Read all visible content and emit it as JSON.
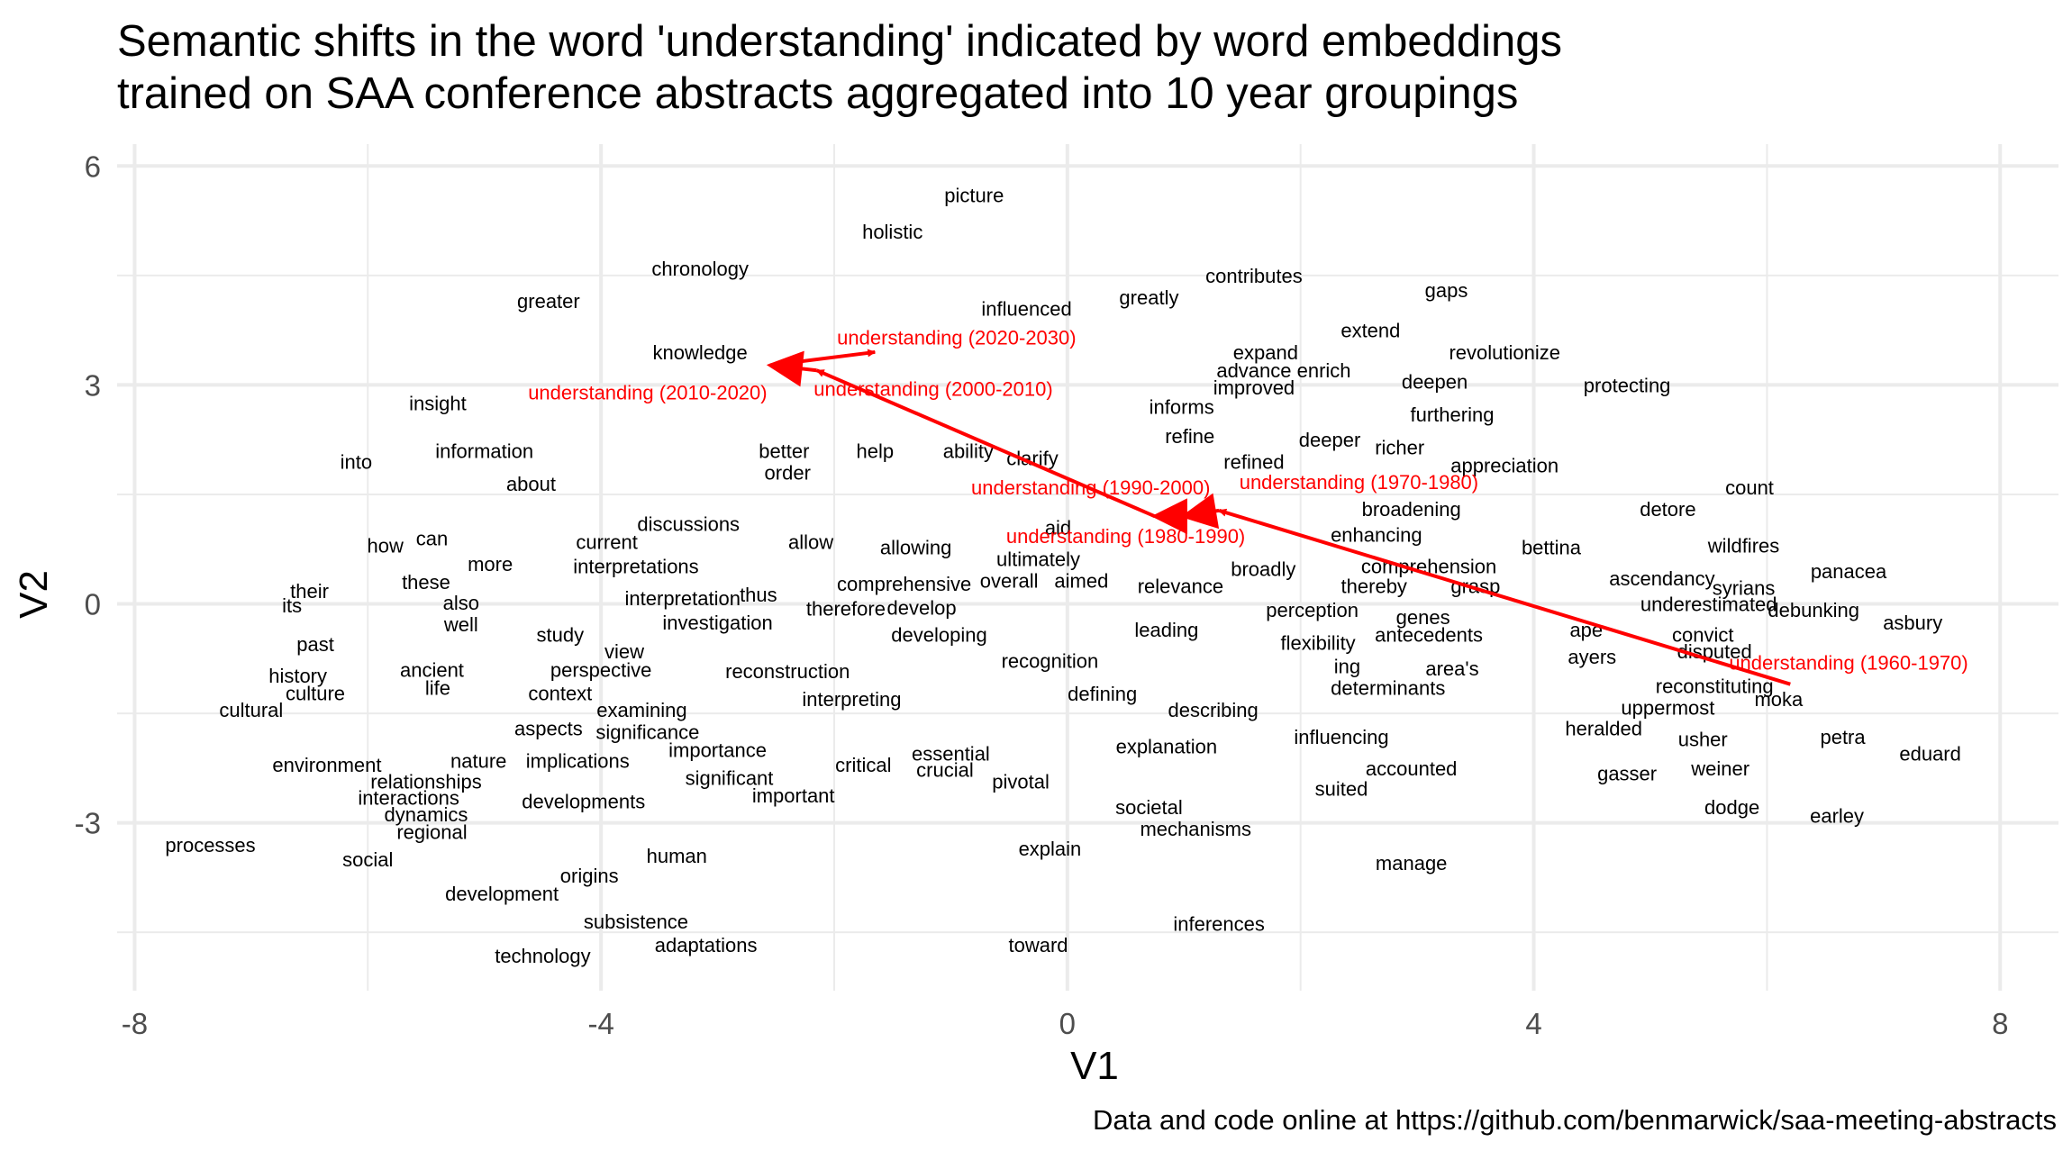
{
  "chart_data": {
    "type": "scatter",
    "title": [
      "Semantic shifts in the word 'understanding' indicated by word embeddings",
      "trained on SAA conference abstracts aggregated into 10 year groupings"
    ],
    "xlabel": "V1",
    "ylabel": "V2",
    "xlim": [
      -8.15,
      8.5
    ],
    "ylim": [
      -5.3,
      6.3
    ],
    "x_ticks": [
      -8,
      -4,
      0,
      4,
      8
    ],
    "x_tick_labels": [
      "-8",
      "-4",
      "0",
      "4",
      "8"
    ],
    "y_ticks": [
      -3,
      0,
      3,
      6
    ],
    "y_tick_labels": [
      "-3",
      "0",
      "3",
      "6"
    ],
    "grid": true,
    "caption": "Data and code online at https://github.com/benmarwick/saa-meeting-abstracts",
    "colors": {
      "words": "#000000",
      "path": "#ff0000",
      "grid": "#ebebeb",
      "background": "#ffffff"
    },
    "words": [
      {
        "text": "picture",
        "x": -0.8,
        "y": 5.6
      },
      {
        "text": "holistic",
        "x": -1.5,
        "y": 5.1
      },
      {
        "text": "chronology",
        "x": -3.15,
        "y": 4.6
      },
      {
        "text": "contributes",
        "x": 1.6,
        "y": 4.5
      },
      {
        "text": "gaps",
        "x": 3.25,
        "y": 4.3
      },
      {
        "text": "greater",
        "x": -4.45,
        "y": 4.15
      },
      {
        "text": "greatly",
        "x": 0.7,
        "y": 4.2
      },
      {
        "text": "influenced",
        "x": -0.35,
        "y": 4.05
      },
      {
        "text": "extend",
        "x": 2.6,
        "y": 3.75
      },
      {
        "text": "knowledge",
        "x": -3.15,
        "y": 3.45
      },
      {
        "text": "expand",
        "x": 1.7,
        "y": 3.45
      },
      {
        "text": "revolutionize",
        "x": 3.75,
        "y": 3.45
      },
      {
        "text": "advance",
        "x": 1.6,
        "y": 3.2
      },
      {
        "text": "enrich",
        "x": 2.2,
        "y": 3.2
      },
      {
        "text": "deepen",
        "x": 3.15,
        "y": 3.05
      },
      {
        "text": "protecting",
        "x": 4.8,
        "y": 3.0
      },
      {
        "text": "improved",
        "x": 1.6,
        "y": 2.97
      },
      {
        "text": "informs",
        "x": 0.98,
        "y": 2.7
      },
      {
        "text": "furthering",
        "x": 3.3,
        "y": 2.6
      },
      {
        "text": "insight",
        "x": -5.4,
        "y": 2.75
      },
      {
        "text": "refine",
        "x": 1.05,
        "y": 2.3
      },
      {
        "text": "deeper",
        "x": 2.25,
        "y": 2.25
      },
      {
        "text": "richer",
        "x": 2.85,
        "y": 2.15
      },
      {
        "text": "information",
        "x": -5.0,
        "y": 2.1
      },
      {
        "text": "better",
        "x": -2.43,
        "y": 2.1
      },
      {
        "text": "help",
        "x": -1.65,
        "y": 2.1
      },
      {
        "text": "ability",
        "x": -0.85,
        "y": 2.1
      },
      {
        "text": "into",
        "x": -6.1,
        "y": 1.95
      },
      {
        "text": "clarify",
        "x": -0.3,
        "y": 2.0
      },
      {
        "text": "refined",
        "x": 1.6,
        "y": 1.95
      },
      {
        "text": "appreciation",
        "x": 3.75,
        "y": 1.9
      },
      {
        "text": "order",
        "x": -2.4,
        "y": 1.8
      },
      {
        "text": "about",
        "x": -4.6,
        "y": 1.65
      },
      {
        "text": "count",
        "x": 5.85,
        "y": 1.6
      },
      {
        "text": "broadening",
        "x": 2.95,
        "y": 1.3
      },
      {
        "text": "detore",
        "x": 5.15,
        "y": 1.3
      },
      {
        "text": "discussions",
        "x": -3.25,
        "y": 1.1
      },
      {
        "text": "aid",
        "x": -0.08,
        "y": 1.05
      },
      {
        "text": "enhancing",
        "x": 2.65,
        "y": 0.95
      },
      {
        "text": "how",
        "x": -5.85,
        "y": 0.8
      },
      {
        "text": "can",
        "x": -5.45,
        "y": 0.9
      },
      {
        "text": "current",
        "x": -3.95,
        "y": 0.85
      },
      {
        "text": "allow",
        "x": -2.2,
        "y": 0.85
      },
      {
        "text": "allowing",
        "x": -1.3,
        "y": 0.78
      },
      {
        "text": "bettina",
        "x": 4.15,
        "y": 0.78
      },
      {
        "text": "wildfires",
        "x": 5.8,
        "y": 0.8
      },
      {
        "text": "ultimately",
        "x": -0.25,
        "y": 0.62
      },
      {
        "text": "more",
        "x": -4.95,
        "y": 0.55
      },
      {
        "text": "interpretations",
        "x": -3.7,
        "y": 0.52
      },
      {
        "text": "comprehension",
        "x": 3.1,
        "y": 0.52
      },
      {
        "text": "broadly",
        "x": 1.68,
        "y": 0.48
      },
      {
        "text": "panacea",
        "x": 6.7,
        "y": 0.45
      },
      {
        "text": "these",
        "x": -5.5,
        "y": 0.3
      },
      {
        "text": "overall",
        "x": -0.5,
        "y": 0.32
      },
      {
        "text": "aimed",
        "x": 0.12,
        "y": 0.32
      },
      {
        "text": "comprehensive",
        "x": -1.4,
        "y": 0.28
      },
      {
        "text": "ascendancy",
        "x": 5.1,
        "y": 0.35
      },
      {
        "text": "their",
        "x": -6.5,
        "y": 0.18
      },
      {
        "text": "relevance",
        "x": 0.97,
        "y": 0.25
      },
      {
        "text": "thereby",
        "x": 2.63,
        "y": 0.25
      },
      {
        "text": "grasp",
        "x": 3.5,
        "y": 0.25
      },
      {
        "text": "syrians",
        "x": 5.8,
        "y": 0.22
      },
      {
        "text": "thus",
        "x": -2.65,
        "y": 0.13
      },
      {
        "text": "interpretation",
        "x": -3.3,
        "y": 0.08
      },
      {
        "text": "also",
        "x": -5.2,
        "y": 0.02
      },
      {
        "text": "underestimated",
        "x": 5.5,
        "y": 0.0
      },
      {
        "text": "its",
        "x": -6.65,
        "y": -0.02
      },
      {
        "text": "develop",
        "x": -1.25,
        "y": -0.05
      },
      {
        "text": "therefore",
        "x": -1.9,
        "y": -0.06
      },
      {
        "text": "perception",
        "x": 2.1,
        "y": -0.08
      },
      {
        "text": "debunking",
        "x": 6.4,
        "y": -0.08
      },
      {
        "text": "investigation",
        "x": -3.0,
        "y": -0.25
      },
      {
        "text": "well",
        "x": -5.2,
        "y": -0.28
      },
      {
        "text": "genes",
        "x": 3.05,
        "y": -0.18
      },
      {
        "text": "asbury",
        "x": 7.25,
        "y": -0.25
      },
      {
        "text": "leading",
        "x": 0.85,
        "y": -0.35
      },
      {
        "text": "ape",
        "x": 4.45,
        "y": -0.35
      },
      {
        "text": "study",
        "x": -4.35,
        "y": -0.42
      },
      {
        "text": "developing",
        "x": -1.1,
        "y": -0.42
      },
      {
        "text": "antecedents",
        "x": 3.1,
        "y": -0.42
      },
      {
        "text": "convict",
        "x": 5.45,
        "y": -0.42
      },
      {
        "text": "flexibility",
        "x": 2.15,
        "y": -0.53
      },
      {
        "text": "past",
        "x": -6.45,
        "y": -0.55
      },
      {
        "text": "view",
        "x": -3.8,
        "y": -0.65
      },
      {
        "text": "disputed",
        "x": 5.55,
        "y": -0.65
      },
      {
        "text": "ayers",
        "x": 4.5,
        "y": -0.72
      },
      {
        "text": "recognition",
        "x": -0.15,
        "y": -0.78
      },
      {
        "text": "ing",
        "x": 2.4,
        "y": -0.85
      },
      {
        "text": "area's",
        "x": 3.3,
        "y": -0.88
      },
      {
        "text": "ancient",
        "x": -5.45,
        "y": -0.9
      },
      {
        "text": "perspective",
        "x": -4.0,
        "y": -0.9
      },
      {
        "text": "reconstruction",
        "x": -2.4,
        "y": -0.92
      },
      {
        "text": "history",
        "x": -6.6,
        "y": -0.98
      },
      {
        "text": "reconstituting",
        "x": 5.55,
        "y": -1.12
      },
      {
        "text": "life",
        "x": -5.4,
        "y": -1.15
      },
      {
        "text": "determinants",
        "x": 2.75,
        "y": -1.15
      },
      {
        "text": "culture",
        "x": -6.45,
        "y": -1.22
      },
      {
        "text": "context",
        "x": -4.35,
        "y": -1.22
      },
      {
        "text": "defining",
        "x": 0.3,
        "y": -1.23
      },
      {
        "text": "interpreting",
        "x": -1.85,
        "y": -1.3
      },
      {
        "text": "moka",
        "x": 6.1,
        "y": -1.3
      },
      {
        "text": "uppermost",
        "x": 5.15,
        "y": -1.42
      },
      {
        "text": "cultural",
        "x": -7.0,
        "y": -1.45
      },
      {
        "text": "examining",
        "x": -3.65,
        "y": -1.45
      },
      {
        "text": "describing",
        "x": 1.25,
        "y": -1.45
      },
      {
        "text": "aspects",
        "x": -4.45,
        "y": -1.7
      },
      {
        "text": "heralded",
        "x": 4.6,
        "y": -1.7
      },
      {
        "text": "significance",
        "x": -3.6,
        "y": -1.75
      },
      {
        "text": "influencing",
        "x": 2.35,
        "y": -1.82
      },
      {
        "text": "petra",
        "x": 6.65,
        "y": -1.82
      },
      {
        "text": "usher",
        "x": 5.45,
        "y": -1.85
      },
      {
        "text": "explanation",
        "x": 0.85,
        "y": -1.95
      },
      {
        "text": "importance",
        "x": -3.0,
        "y": -2.0
      },
      {
        "text": "essential",
        "x": -1.0,
        "y": -2.05
      },
      {
        "text": "eduard",
        "x": 7.4,
        "y": -2.05
      },
      {
        "text": "nature",
        "x": -5.05,
        "y": -2.15
      },
      {
        "text": "implications",
        "x": -4.2,
        "y": -2.15
      },
      {
        "text": "environment",
        "x": -6.35,
        "y": -2.2
      },
      {
        "text": "critical",
        "x": -1.75,
        "y": -2.2
      },
      {
        "text": "crucial",
        "x": -1.05,
        "y": -2.27
      },
      {
        "text": "accounted",
        "x": 2.95,
        "y": -2.25
      },
      {
        "text": "weiner",
        "x": 5.6,
        "y": -2.25
      },
      {
        "text": "gasser",
        "x": 4.8,
        "y": -2.32
      },
      {
        "text": "significant",
        "x": -2.9,
        "y": -2.38
      },
      {
        "text": "relationships",
        "x": -5.5,
        "y": -2.43
      },
      {
        "text": "pivotal",
        "x": -0.4,
        "y": -2.43
      },
      {
        "text": "suited",
        "x": 2.35,
        "y": -2.53
      },
      {
        "text": "interactions",
        "x": -5.65,
        "y": -2.65
      },
      {
        "text": "important",
        "x": -2.35,
        "y": -2.62
      },
      {
        "text": "developments",
        "x": -4.15,
        "y": -2.7
      },
      {
        "text": "societal",
        "x": 0.7,
        "y": -2.78
      },
      {
        "text": "dodge",
        "x": 5.7,
        "y": -2.78
      },
      {
        "text": "dynamics",
        "x": -5.5,
        "y": -2.88
      },
      {
        "text": "earley",
        "x": 6.6,
        "y": -2.9
      },
      {
        "text": "regional",
        "x": -5.45,
        "y": -3.12
      },
      {
        "text": "mechanisms",
        "x": 1.1,
        "y": -3.08
      },
      {
        "text": "processes",
        "x": -7.35,
        "y": -3.3
      },
      {
        "text": "explain",
        "x": -0.15,
        "y": -3.35
      },
      {
        "text": "human",
        "x": -3.35,
        "y": -3.45
      },
      {
        "text": "social",
        "x": -6.0,
        "y": -3.5
      },
      {
        "text": "manage",
        "x": 2.95,
        "y": -3.55
      },
      {
        "text": "origins",
        "x": -4.1,
        "y": -3.72
      },
      {
        "text": "development",
        "x": -4.85,
        "y": -3.97
      },
      {
        "text": "subsistence",
        "x": -3.7,
        "y": -4.35
      },
      {
        "text": "inferences",
        "x": 1.3,
        "y": -4.38
      },
      {
        "text": "adaptations",
        "x": -3.1,
        "y": -4.67
      },
      {
        "text": "toward",
        "x": -0.25,
        "y": -4.67
      },
      {
        "text": "technology",
        "x": -4.5,
        "y": -4.82
      }
    ],
    "path": [
      {
        "label": "understanding (1960-1970)",
        "x": 6.2,
        "y": -1.1,
        "lx": 6.7,
        "ly": -0.8
      },
      {
        "label": "understanding (1970-1980)",
        "x": 1.3,
        "y": 1.28,
        "lx": 2.5,
        "ly": 1.67
      },
      {
        "label": "understanding (1980-1990)",
        "x": 1.0,
        "y": 1.2,
        "lx": 0.5,
        "ly": 0.93
      },
      {
        "label": "understanding (1990-2000)",
        "x": 0.75,
        "y": 1.2,
        "lx": 0.2,
        "ly": 1.6
      },
      {
        "label": "understanding (2000-2010)",
        "x": -2.15,
        "y": 3.2,
        "lx": -1.15,
        "ly": 2.95
      },
      {
        "label": "understanding (2010-2020)",
        "x": -2.55,
        "y": 3.27,
        "lx": -3.6,
        "ly": 2.9
      },
      {
        "label": "understanding (2020-2030)",
        "x": -1.65,
        "y": 3.45,
        "lx": -0.95,
        "ly": 3.65
      }
    ]
  }
}
